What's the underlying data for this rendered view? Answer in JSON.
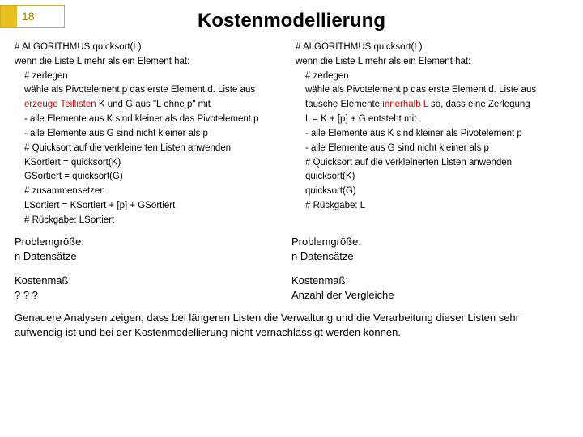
{
  "slide": {
    "number": "18",
    "title": "Kostenmodellierung"
  },
  "left": {
    "l0": "# ALGORITHMUS quicksort(L)",
    "l1": "wenn die Liste L mehr als ein Element hat:",
    "l2": "# zerlegen",
    "l3": "wähle als Pivotelement p das erste Element d. Liste aus",
    "l4a": "erzeuge Teillisten",
    "l4b": " K und G aus \"L ohne p\" mit",
    "l5": "- alle Elemente aus K sind kleiner als das Pivotelement p",
    "l6": "- alle Elemente aus G sind nicht kleiner als p",
    "l7": "# Quicksort auf die verkleinerten Listen anwenden",
    "l8": "KSortiert = quicksort(K)",
    "l9": "GSortiert = quicksort(G)",
    "l10": "# zusammensetzen",
    "l11": "LSortiert = KSortiert + [p] + GSortiert",
    "l12": "# Rückgabe: LSortiert"
  },
  "right": {
    "r0": "# ALGORITHMUS quicksort(L)",
    "r1": "wenn die Liste L mehr als ein Element hat:",
    "r2": "# zerlegen",
    "r3": "wähle als Pivotelement p das erste Element d. Liste aus",
    "r4a": "tausche Elemente ",
    "r4b": "innerhalb L",
    "r4c": " so, dass eine Zerlegung",
    "r4d": "L = K + [p] + G entsteht mit",
    "r5": "- alle Elemente aus K sind kleiner als Pivotelement p",
    "r6": "- alle Elemente aus G sind nicht kleiner als p",
    "r7": "# Quicksort auf die verkleinerten Listen anwenden",
    "r8": "quicksort(K)",
    "r9": "quicksort(G)",
    "r10": "# Rückgabe: L"
  },
  "summary": {
    "leftA": "Problemgröße:",
    "leftB": "n Datensätze",
    "leftC": "Kostenmaß:",
    "leftD": "? ? ?",
    "rightA": "Problemgröße:",
    "rightB": "n Datensätze",
    "rightC": "Kostenmaß:",
    "rightD": "Anzahl der Vergleiche"
  },
  "bottom": "Genauere Analysen zeigen, dass bei längeren Listen die Verwaltung und die Verarbeitung dieser Listen sehr aufwendig ist und bei der Kostenmodellierung nicht vernachlässigt werden können.",
  "colors": {
    "gold_border": "#d4b020",
    "gold_fill": "#e8c020",
    "gold_text": "#a08000",
    "highlight": "#cc0000"
  }
}
